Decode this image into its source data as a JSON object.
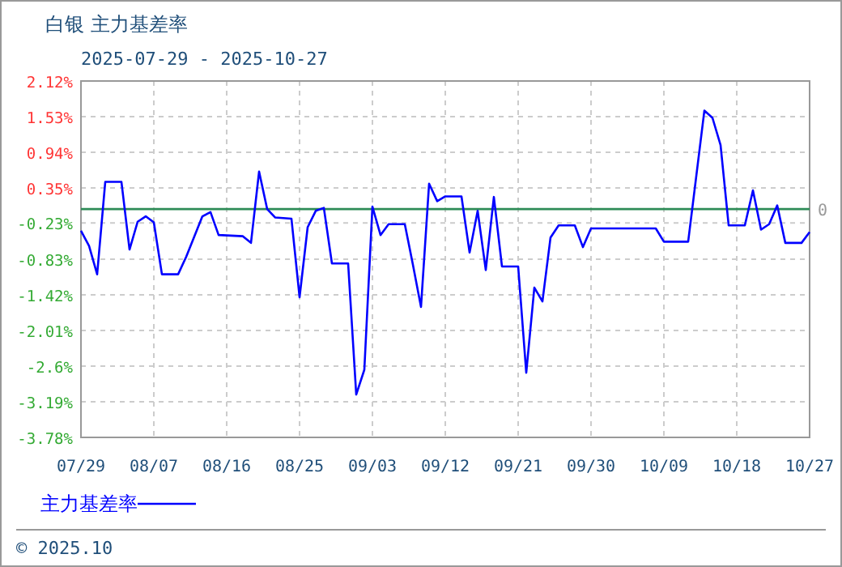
{
  "chart_data": {
    "type": "line",
    "title": "白银 主力基差率",
    "subtitle": "2025-07-29 - 2025-10-27",
    "x": [
      "2025-07-29",
      "2025-07-30",
      "2025-07-31",
      "2025-08-01",
      "2025-08-03",
      "2025-08-04",
      "2025-08-05",
      "2025-08-06",
      "2025-08-07",
      "2025-08-08",
      "2025-08-10",
      "2025-08-11",
      "2025-08-13",
      "2025-08-14",
      "2025-08-15",
      "2025-08-18",
      "2025-08-19",
      "2025-08-20",
      "2025-08-21",
      "2025-08-22",
      "2025-08-24",
      "2025-08-25",
      "2025-08-26",
      "2025-08-27",
      "2025-08-28",
      "2025-08-29",
      "2025-08-31",
      "2025-09-01",
      "2025-09-02",
      "2025-09-03",
      "2025-09-04",
      "2025-09-05",
      "2025-09-07",
      "2025-09-08",
      "2025-09-09",
      "2025-09-10",
      "2025-09-11",
      "2025-09-12",
      "2025-09-14",
      "2025-09-15",
      "2025-09-16",
      "2025-09-17",
      "2025-09-18",
      "2025-09-19",
      "2025-09-21",
      "2025-09-22",
      "2025-09-23",
      "2025-09-24",
      "2025-09-25",
      "2025-09-26",
      "2025-09-28",
      "2025-09-29",
      "2025-09-30",
      "2025-10-08",
      "2025-10-09",
      "2025-10-12",
      "2025-10-14",
      "2025-10-15",
      "2025-10-16",
      "2025-10-17",
      "2025-10-19",
      "2025-10-20",
      "2025-10-21",
      "2025-10-22",
      "2025-10-23",
      "2025-10-24",
      "2025-10-26",
      "2025-10-27"
    ],
    "series": [
      {
        "name": "主力基差率",
        "color": "#0000ff",
        "values": [
          -0.36,
          -0.61,
          -1.08,
          0.45,
          0.45,
          -0.67,
          -0.21,
          -0.12,
          -0.22,
          -1.08,
          -1.08,
          -0.79,
          -0.12,
          -0.05,
          -0.43,
          -0.45,
          -0.56,
          0.62,
          0,
          -0.14,
          -0.16,
          -1.46,
          -0.3,
          -0.03,
          0.02,
          -0.9,
          -0.9,
          -3.07,
          -2.66,
          0.04,
          -0.43,
          -0.25,
          -0.25,
          -0.92,
          -1.62,
          0.42,
          0.13,
          0.21,
          0.21,
          -0.72,
          -0.03,
          -1.01,
          0.2,
          -0.95,
          -0.95,
          -2.71,
          -1.3,
          -1.53,
          -0.47,
          -0.27,
          -0.27,
          -0.63,
          -0.32,
          -0.32,
          -0.54,
          -0.54,
          1.63,
          1.51,
          1.06,
          -0.27,
          -0.27,
          0.31,
          -0.34,
          -0.25,
          0.06,
          -0.56,
          -0.56,
          -0.38
        ]
      }
    ],
    "xlim": [
      "2025-07-29",
      "2025-10-27"
    ],
    "xticks": [
      {
        "value": "2025-07-29",
        "label": "07/29"
      },
      {
        "value": "2025-08-07",
        "label": "08/07"
      },
      {
        "value": "2025-08-16",
        "label": "08/16"
      },
      {
        "value": "2025-08-25",
        "label": "08/25"
      },
      {
        "value": "2025-09-03",
        "label": "09/03"
      },
      {
        "value": "2025-09-12",
        "label": "09/12"
      },
      {
        "value": "2025-09-21",
        "label": "09/21"
      },
      {
        "value": "2025-09-30",
        "label": "09/30"
      },
      {
        "value": "2025-10-09",
        "label": "10/09"
      },
      {
        "value": "2025-10-18",
        "label": "10/18"
      },
      {
        "value": "2025-10-27",
        "label": "10/27"
      }
    ],
    "ylim": [
      -3.78,
      2.12
    ],
    "yticks": [
      {
        "value": 2.12,
        "label": "2.12%"
      },
      {
        "value": 1.53,
        "label": "1.53%"
      },
      {
        "value": 0.94,
        "label": "0.94%"
      },
      {
        "value": 0.35,
        "label": "0.35%"
      },
      {
        "value": -0.23,
        "label": "-0.23%"
      },
      {
        "value": -0.83,
        "label": "-0.83%"
      },
      {
        "value": -1.42,
        "label": "-1.42%"
      },
      {
        "value": -2.01,
        "label": "-2.01%"
      },
      {
        "value": -2.6,
        "label": "-2.6%"
      },
      {
        "value": -3.19,
        "label": "-3.19%"
      },
      {
        "value": -3.78,
        "label": "-3.78%"
      }
    ],
    "ref_lines": [
      {
        "axis": "y",
        "value": 0,
        "label": "0",
        "color": "#2e8b57"
      }
    ],
    "grid": true,
    "legend": "bottom left",
    "marker": "none",
    "line_style": "solid",
    "annotations": [
      "© 2025.10"
    ]
  }
}
